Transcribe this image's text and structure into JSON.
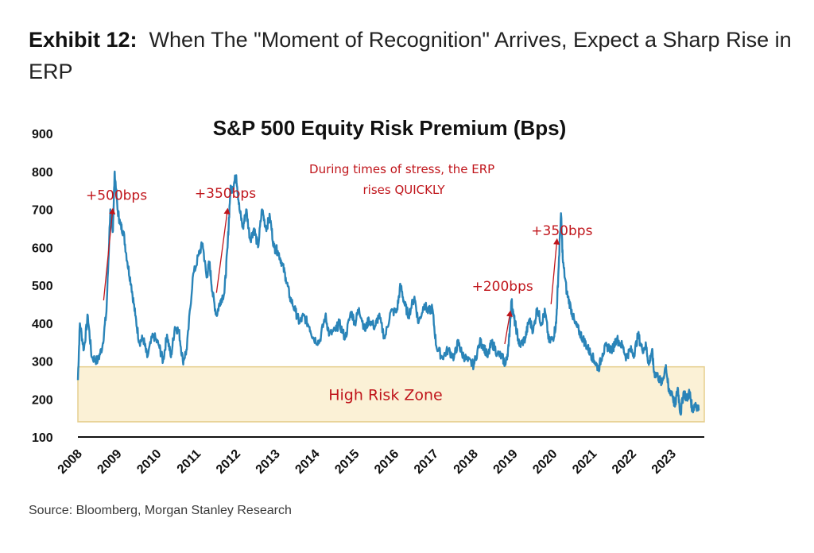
{
  "exhibit": {
    "number": "Exhibit 12:",
    "title": "When The \"Moment of Recognition\" Arrives, Expect a Sharp Rise in ERP"
  },
  "source": "Source: Bloomberg, Morgan Stanley Research",
  "colors": {
    "line": "#2a84b8",
    "annotation": "#c0151b",
    "zone_fill": "#fbf1d6",
    "zone_border": "#e6cf8f"
  },
  "chart_data": {
    "type": "line",
    "title": "S&P 500 Equity Risk Premium (Bps)",
    "xlabel": "",
    "ylabel": "",
    "ylim": [
      100,
      900
    ],
    "yticks": [
      100,
      200,
      300,
      400,
      500,
      600,
      700,
      800,
      900
    ],
    "xlim": [
      2008.0,
      2023.7
    ],
    "xticks": [
      "2008",
      "2009",
      "2010",
      "2011",
      "2012",
      "2013",
      "2014",
      "2015",
      "2016",
      "2017",
      "2018",
      "2019",
      "2020",
      "2021",
      "2022",
      "2023"
    ],
    "grid": false,
    "legend": "none",
    "series": [
      {
        "points": [
          [
            2008.0,
            250
          ],
          [
            2008.05,
            400
          ],
          [
            2008.15,
            330
          ],
          [
            2008.25,
            420
          ],
          [
            2008.35,
            310
          ],
          [
            2008.5,
            300
          ],
          [
            2008.62,
            340
          ],
          [
            2008.72,
            430
          ],
          [
            2008.82,
            700
          ],
          [
            2008.88,
            640
          ],
          [
            2008.93,
            800
          ],
          [
            2009.0,
            700
          ],
          [
            2009.07,
            660
          ],
          [
            2009.15,
            640
          ],
          [
            2009.25,
            560
          ],
          [
            2009.35,
            500
          ],
          [
            2009.45,
            420
          ],
          [
            2009.55,
            350
          ],
          [
            2009.65,
            360
          ],
          [
            2009.75,
            310
          ],
          [
            2009.9,
            370
          ],
          [
            2010.05,
            340
          ],
          [
            2010.15,
            300
          ],
          [
            2010.25,
            370
          ],
          [
            2010.35,
            310
          ],
          [
            2010.45,
            390
          ],
          [
            2010.55,
            380
          ],
          [
            2010.65,
            300
          ],
          [
            2010.75,
            330
          ],
          [
            2010.9,
            520
          ],
          [
            2011.05,
            580
          ],
          [
            2011.15,
            610
          ],
          [
            2011.25,
            520
          ],
          [
            2011.32,
            560
          ],
          [
            2011.4,
            480
          ],
          [
            2011.5,
            420
          ],
          [
            2011.6,
            460
          ],
          [
            2011.7,
            480
          ],
          [
            2011.78,
            600
          ],
          [
            2011.85,
            750
          ],
          [
            2011.92,
            760
          ],
          [
            2012.0,
            790
          ],
          [
            2012.08,
            700
          ],
          [
            2012.17,
            650
          ],
          [
            2012.25,
            700
          ],
          [
            2012.35,
            620
          ],
          [
            2012.45,
            650
          ],
          [
            2012.55,
            600
          ],
          [
            2012.65,
            700
          ],
          [
            2012.75,
            650
          ],
          [
            2012.85,
            680
          ],
          [
            2012.95,
            600
          ],
          [
            2013.05,
            590
          ],
          [
            2013.15,
            560
          ],
          [
            2013.25,
            520
          ],
          [
            2013.35,
            470
          ],
          [
            2013.5,
            430
          ],
          [
            2013.6,
            400
          ],
          [
            2013.7,
            420
          ],
          [
            2013.85,
            390
          ],
          [
            2013.95,
            360
          ],
          [
            2014.1,
            350
          ],
          [
            2014.25,
            420
          ],
          [
            2014.35,
            370
          ],
          [
            2014.5,
            380
          ],
          [
            2014.6,
            400
          ],
          [
            2014.75,
            360
          ],
          [
            2014.9,
            430
          ],
          [
            2015.0,
            400
          ],
          [
            2015.1,
            440
          ],
          [
            2015.25,
            380
          ],
          [
            2015.35,
            410
          ],
          [
            2015.5,
            390
          ],
          [
            2015.6,
            420
          ],
          [
            2015.75,
            360
          ],
          [
            2015.9,
            430
          ],
          [
            2016.05,
            430
          ],
          [
            2016.15,
            500
          ],
          [
            2016.25,
            450
          ],
          [
            2016.35,
            420
          ],
          [
            2016.5,
            470
          ],
          [
            2016.6,
            400
          ],
          [
            2016.75,
            450
          ],
          [
            2016.85,
            430
          ],
          [
            2016.95,
            440
          ],
          [
            2017.05,
            340
          ],
          [
            2017.2,
            310
          ],
          [
            2017.35,
            330
          ],
          [
            2017.5,
            310
          ],
          [
            2017.6,
            350
          ],
          [
            2017.7,
            320
          ],
          [
            2017.85,
            300
          ],
          [
            2018.0,
            290
          ],
          [
            2018.15,
            350
          ],
          [
            2018.25,
            340
          ],
          [
            2018.35,
            310
          ],
          [
            2018.45,
            350
          ],
          [
            2018.6,
            320
          ],
          [
            2018.72,
            310
          ],
          [
            2018.8,
            290
          ],
          [
            2018.88,
            340
          ],
          [
            2018.95,
            460
          ],
          [
            2019.0,
            420
          ],
          [
            2019.08,
            380
          ],
          [
            2019.15,
            340
          ],
          [
            2019.3,
            360
          ],
          [
            2019.4,
            410
          ],
          [
            2019.5,
            380
          ],
          [
            2019.6,
            440
          ],
          [
            2019.7,
            400
          ],
          [
            2019.8,
            430
          ],
          [
            2019.9,
            350
          ],
          [
            2020.0,
            360
          ],
          [
            2020.08,
            400
          ],
          [
            2020.13,
            520
          ],
          [
            2020.2,
            690
          ],
          [
            2020.25,
            560
          ],
          [
            2020.35,
            480
          ],
          [
            2020.45,
            440
          ],
          [
            2020.55,
            400
          ],
          [
            2020.65,
            380
          ],
          [
            2020.75,
            360
          ],
          [
            2020.85,
            340
          ],
          [
            2020.95,
            320
          ],
          [
            2021.05,
            300
          ],
          [
            2021.15,
            280
          ],
          [
            2021.25,
            320
          ],
          [
            2021.35,
            340
          ],
          [
            2021.5,
            330
          ],
          [
            2021.6,
            360
          ],
          [
            2021.75,
            340
          ],
          [
            2021.85,
            310
          ],
          [
            2021.95,
            330
          ],
          [
            2022.05,
            320
          ],
          [
            2022.15,
            370
          ],
          [
            2022.25,
            330
          ],
          [
            2022.35,
            340
          ],
          [
            2022.42,
            290
          ],
          [
            2022.5,
            330
          ],
          [
            2022.55,
            270
          ],
          [
            2022.65,
            260
          ],
          [
            2022.75,
            240
          ],
          [
            2022.85,
            290
          ],
          [
            2022.92,
            220
          ],
          [
            2023.0,
            220
          ],
          [
            2023.08,
            180
          ],
          [
            2023.15,
            230
          ],
          [
            2023.22,
            160
          ],
          [
            2023.3,
            220
          ],
          [
            2023.38,
            200
          ],
          [
            2023.45,
            220
          ],
          [
            2023.52,
            170
          ],
          [
            2023.6,
            190
          ],
          [
            2023.68,
            170
          ]
        ]
      }
    ],
    "annotations": [
      {
        "text": "+500bps",
        "x": 2008.2,
        "y": 725,
        "arrow_from": [
          2008.65,
          460
        ],
        "arrow_to": [
          2008.88,
          700
        ]
      },
      {
        "text": "+350bps",
        "x": 2010.95,
        "y": 730,
        "arrow_from": [
          2011.5,
          480
        ],
        "arrow_to": [
          2011.78,
          700
        ]
      },
      {
        "text": "+200bps",
        "x": 2017.95,
        "y": 485,
        "arrow_from": [
          2018.78,
          345
        ],
        "arrow_to": [
          2018.92,
          430
        ]
      },
      {
        "text": "+350bps",
        "x": 2019.45,
        "y": 632,
        "arrow_from": [
          2019.95,
          450
        ],
        "arrow_to": [
          2020.1,
          620
        ]
      }
    ],
    "note": {
      "lines": [
        "During times of stress, the ERP",
        "rises QUICKLY"
      ]
    },
    "zone": {
      "label": "High Risk Zone",
      "y_min": 140,
      "y_max": 285
    }
  }
}
